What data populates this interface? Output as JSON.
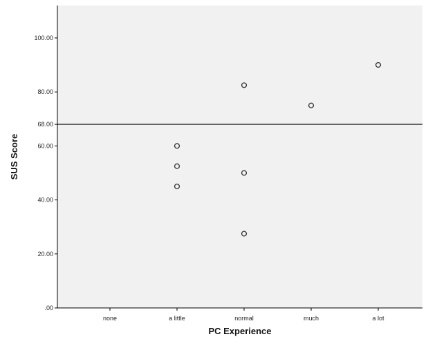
{
  "chart_data": {
    "type": "scatter",
    "title": "",
    "xlabel": "PC Experience",
    "ylabel": "SUS Score",
    "categories": [
      "none",
      "a little",
      "normal",
      "much",
      "a lot"
    ],
    "ylim": [
      0,
      112
    ],
    "yticks": [
      {
        "value": 0,
        "label": ".00"
      },
      {
        "value": 20,
        "label": "20.00"
      },
      {
        "value": 40,
        "label": "40.00"
      },
      {
        "value": 60,
        "label": "60.00"
      },
      {
        "value": 68,
        "label": "68.00"
      },
      {
        "value": 80,
        "label": "80.00"
      },
      {
        "value": 100,
        "label": "100.00"
      }
    ],
    "reference_line": {
      "value": 68
    },
    "points": [
      {
        "x": "a little",
        "y": 60.0
      },
      {
        "x": "a little",
        "y": 52.5
      },
      {
        "x": "a little",
        "y": 45.0
      },
      {
        "x": "normal",
        "y": 82.5
      },
      {
        "x": "normal",
        "y": 50.0
      },
      {
        "x": "normal",
        "y": 27.5
      },
      {
        "x": "much",
        "y": 75.0
      },
      {
        "x": "a lot",
        "y": 90.0
      }
    ],
    "grid": false,
    "colors": {
      "plot_background": "#f1f1f1",
      "marker_stroke": "#333333",
      "axis": "#000000"
    }
  }
}
